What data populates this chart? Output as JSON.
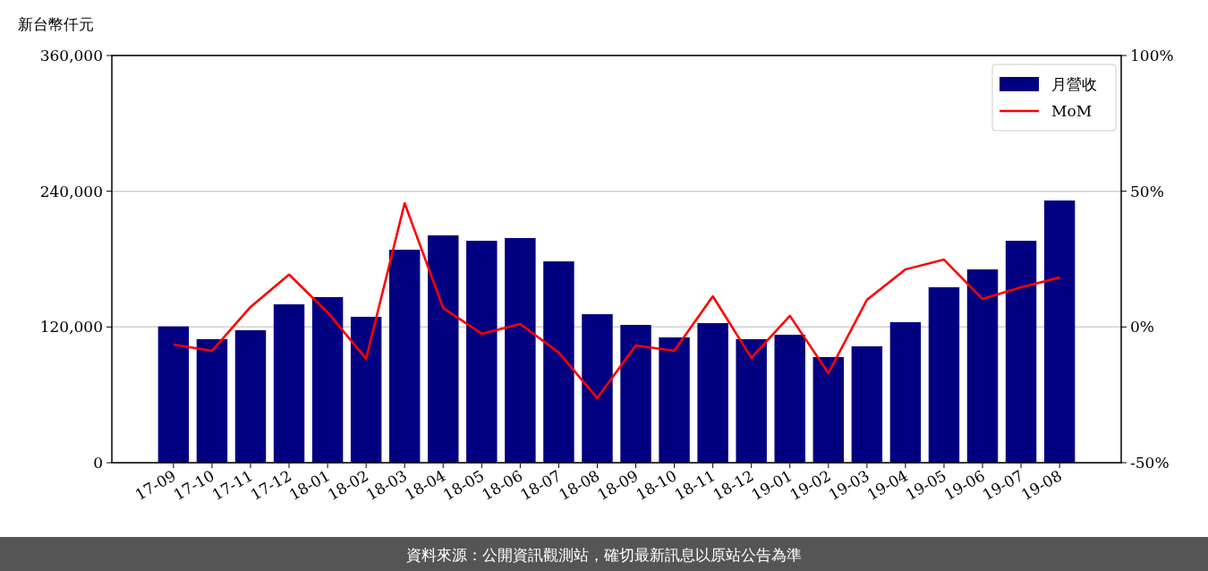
{
  "chart_data": {
    "type": "bar",
    "ylabel": "新台幣仟元",
    "categories": [
      "17-09",
      "17-10",
      "17-11",
      "17-12",
      "18-01",
      "18-02",
      "18-03",
      "18-04",
      "18-05",
      "18-06",
      "18-07",
      "18-08",
      "18-09",
      "18-10",
      "18-11",
      "18-12",
      "19-01",
      "19-02",
      "19-03",
      "19-04",
      "19-05",
      "19-06",
      "19-07",
      "19-08"
    ],
    "series": [
      {
        "name": "月營收",
        "color": "#000080",
        "values": [
          120500,
          109200,
          117100,
          140000,
          146400,
          129000,
          188300,
          201000,
          196200,
          198600,
          178000,
          131300,
          121800,
          110800,
          123400,
          109200,
          113100,
          93400,
          102900,
          124200,
          155100,
          170900,
          196200,
          231800
        ]
      },
      {
        "name": "MoM",
        "type": "line",
        "axis": "y2",
        "color": "#ff0000",
        "values": [
          -6.5,
          -8.8,
          7.4,
          19.3,
          5.4,
          -11.7,
          45.6,
          7.0,
          -2.5,
          1.1,
          -9.4,
          -26.2,
          -6.8,
          -8.8,
          11.3,
          -11.4,
          4.1,
          -17.0,
          10.0,
          21.2,
          24.8,
          10.3,
          14.6,
          18.2
        ]
      }
    ],
    "ylim": [
      0,
      360000
    ],
    "yticks": [
      {
        "value": 0,
        "label": "0"
      },
      {
        "value": 120000,
        "label": "120,000"
      },
      {
        "value": 240000,
        "label": "240,000"
      },
      {
        "value": 360000,
        "label": "360,000"
      }
    ],
    "y2lim": [
      -50,
      100
    ],
    "y2ticks": [
      {
        "value": -50,
        "label": "-50%"
      },
      {
        "value": 0,
        "label": "0%"
      },
      {
        "value": 50,
        "label": "50%"
      },
      {
        "value": 100,
        "label": "100%"
      }
    ],
    "grid": "y",
    "legend": "top right",
    "annotations": [
      "資料來源：公開資訊觀測站，確切最新訊息以原站公告為準"
    ]
  }
}
